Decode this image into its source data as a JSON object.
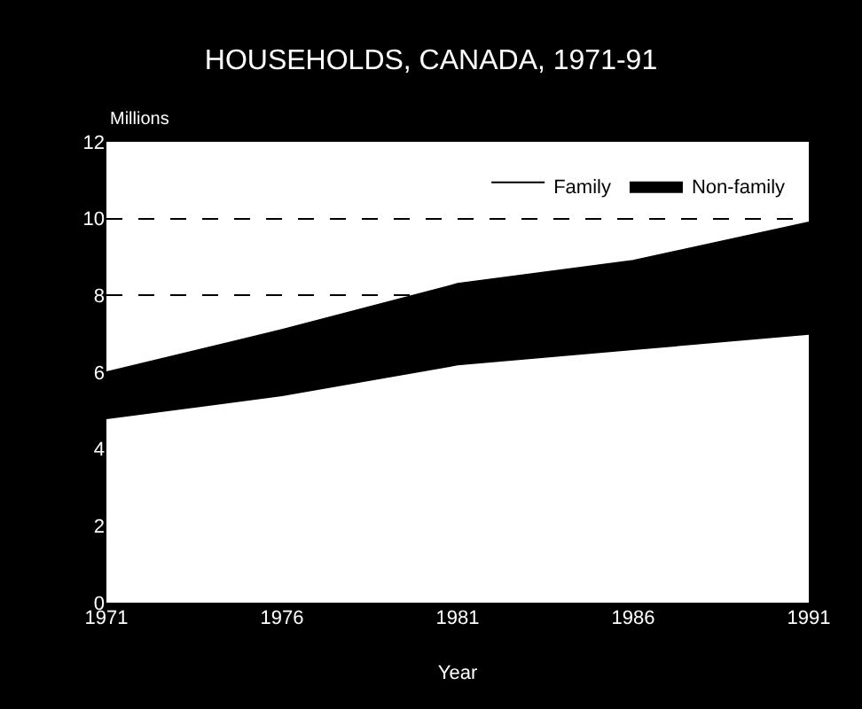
{
  "chart_data": {
    "type": "area",
    "title": "HOUSEHOLDS, CANADA, 1971-91",
    "xlabel": "Year",
    "ylabel": "Millions",
    "x": [
      1971,
      1976,
      1981,
      1986,
      1991
    ],
    "stacked": true,
    "series": [
      {
        "name": "Family",
        "color": "#ffffff",
        "values": [
          4.8,
          5.4,
          6.2,
          6.6,
          7.0
        ]
      },
      {
        "name": "Non-family",
        "color": "#000000",
        "values": [
          1.2,
          1.7,
          2.1,
          2.3,
          2.9
        ]
      }
    ],
    "xlim": [
      1971,
      1991
    ],
    "xticks": [
      1971,
      1976,
      1981,
      1986,
      1991
    ],
    "ylim": [
      0,
      12
    ],
    "yticks": [
      0,
      2,
      4,
      6,
      8,
      10,
      12
    ],
    "grid": "y",
    "line_style": "dashed",
    "legend": "top right"
  }
}
